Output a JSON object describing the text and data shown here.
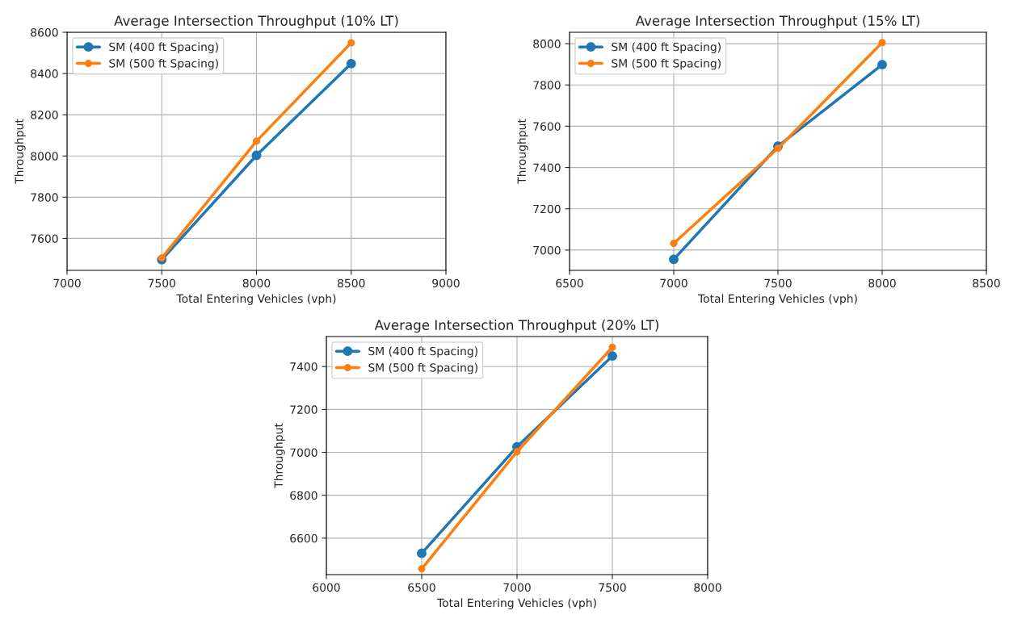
{
  "chart_data": [
    {
      "type": "line",
      "title": "Average Intersection Throughput (10% LT)",
      "xlabel": "Total Entering Vehicles (vph)",
      "ylabel": "Throughput",
      "x": [
        7500,
        8000,
        8500
      ],
      "series": [
        {
          "name": "SM (400 ft Spacing)",
          "color": "#1f77b4",
          "values": [
            7497,
            8003,
            8448
          ]
        },
        {
          "name": "SM (500 ft Spacing)",
          "color": "#ff7f0e",
          "values": [
            7505,
            8072,
            8549
          ]
        }
      ],
      "xlim": [
        7000,
        9000
      ],
      "xticks": [
        7000,
        7500,
        8000,
        8500,
        9000
      ],
      "ylim": [
        7445,
        8600
      ],
      "yticks": [
        7600,
        7800,
        8000,
        8200,
        8400,
        8600
      ],
      "grid": true,
      "legend": "top left",
      "marker": "circle",
      "line_style": "solid"
    },
    {
      "type": "line",
      "title": "Average Intersection Throughput (15% LT)",
      "xlabel": "Total Entering Vehicles (vph)",
      "ylabel": "Throughput",
      "x": [
        7000,
        7500,
        8000
      ],
      "series": [
        {
          "name": "SM (400 ft Spacing)",
          "color": "#1f77b4",
          "values": [
            6955,
            7503,
            7898
          ]
        },
        {
          "name": "SM (500 ft Spacing)",
          "color": "#ff7f0e",
          "values": [
            7033,
            7493,
            8005
          ]
        }
      ],
      "xlim": [
        6500,
        8500
      ],
      "xticks": [
        6500,
        7000,
        7500,
        8000,
        8500
      ],
      "ylim": [
        6902,
        8055
      ],
      "yticks": [
        7000,
        7200,
        7400,
        7600,
        7800,
        8000
      ],
      "grid": true,
      "legend": "top left",
      "marker": "circle",
      "line_style": "solid"
    },
    {
      "type": "line",
      "title": "Average Intersection Throughput (20% LT)",
      "xlabel": "Total Entering Vehicles (vph)",
      "ylabel": "Throughput",
      "x": [
        6500,
        7000,
        7500
      ],
      "series": [
        {
          "name": "SM (400 ft Spacing)",
          "color": "#1f77b4",
          "values": [
            6529,
            7026,
            7449
          ]
        },
        {
          "name": "SM (500 ft Spacing)",
          "color": "#ff7f0e",
          "values": [
            6457,
            7003,
            7490
          ]
        }
      ],
      "xlim": [
        6000,
        8000
      ],
      "xticks": [
        6000,
        6500,
        7000,
        7500,
        8000
      ],
      "ylim": [
        6430,
        7540
      ],
      "yticks": [
        6600,
        6800,
        7000,
        7200,
        7400
      ],
      "grid": true,
      "legend": "top left",
      "marker": "circle",
      "line_style": "solid"
    }
  ]
}
